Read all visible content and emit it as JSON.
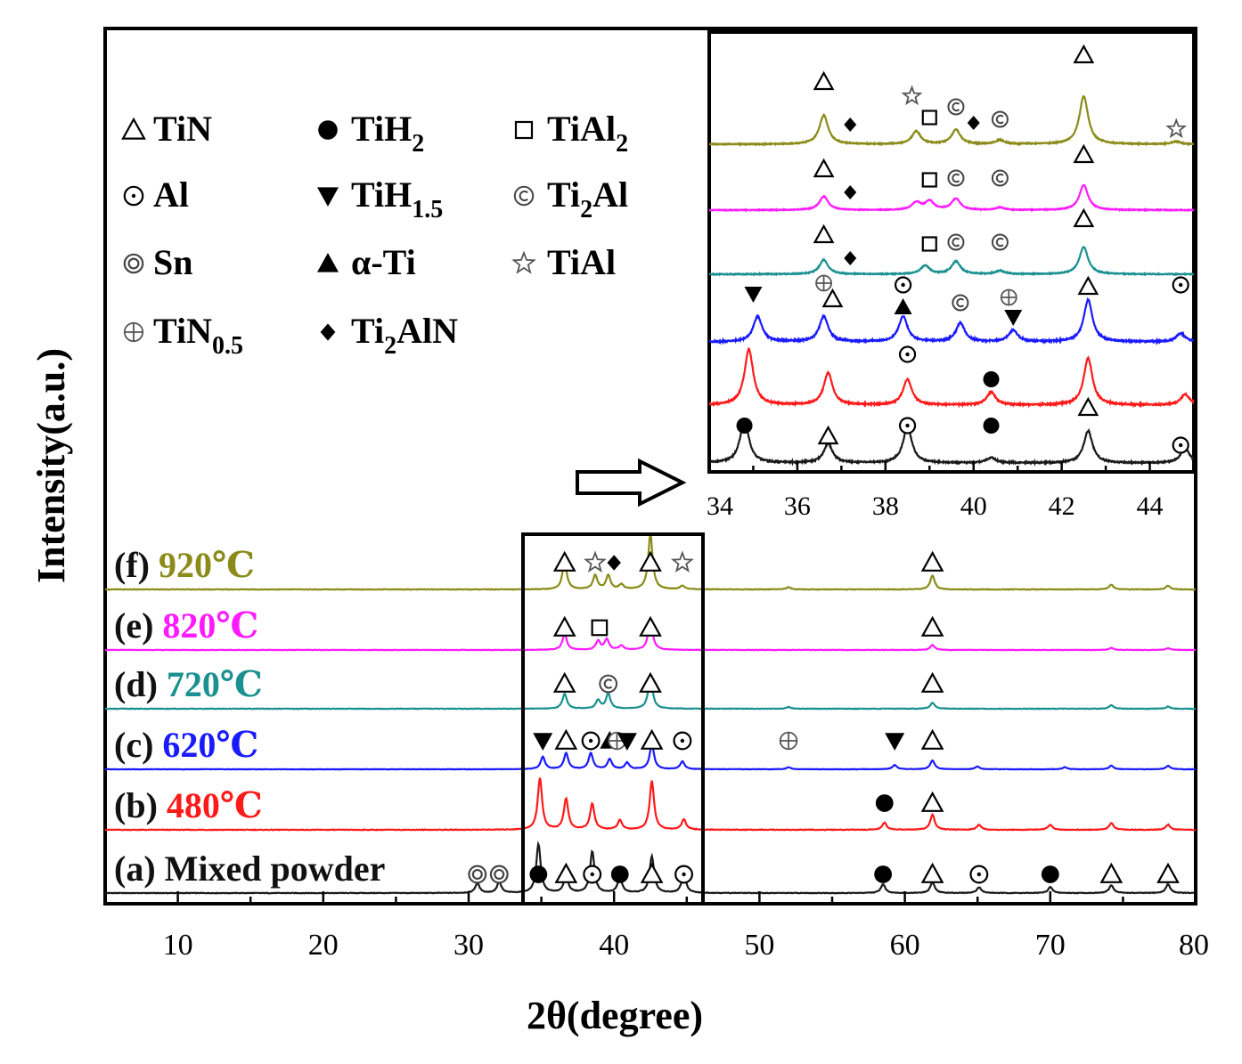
{
  "chart_data": {
    "type": "line",
    "xlabel": "2θ(degree)",
    "ylabel": "Intensity(a.u.)",
    "xlim": [
      5,
      80
    ],
    "xticks": [
      10,
      20,
      30,
      40,
      50,
      60,
      70,
      80
    ],
    "grid": false,
    "legend_position": "top-left",
    "legend": [
      {
        "symbol": "triangle-open",
        "label": "TiN"
      },
      {
        "symbol": "circle-filled",
        "label": "TiH",
        "sub": "2"
      },
      {
        "symbol": "square-open",
        "label": "TiAl",
        "sub": "2"
      },
      {
        "symbol": "circle-dot",
        "label": "Al"
      },
      {
        "symbol": "triangle-down-filled",
        "label": "TiH",
        "sub": "1.5"
      },
      {
        "symbol": "circle-c",
        "label": "Ti",
        "sub": "2",
        "after": "Al"
      },
      {
        "symbol": "circle-double",
        "label": "Sn"
      },
      {
        "symbol": "triangle-up-filled",
        "label": "α-Ti"
      },
      {
        "symbol": "star-open",
        "label": "TiAl"
      },
      {
        "symbol": "circle-plus",
        "label": "TiN",
        "sub": "0.5"
      },
      {
        "symbol": "diamond-filled",
        "label": "Ti",
        "sub": "2",
        "after": "AlN"
      }
    ],
    "series": [
      {
        "id": "a",
        "tag": "(a)",
        "name": "Mixed powder",
        "color": "#1a1a1a",
        "peaks": [
          [
            30.6,
            0.2
          ],
          [
            32.1,
            0.22
          ],
          [
            34.8,
            1.0
          ],
          [
            36.7,
            0.35
          ],
          [
            38.5,
            0.85
          ],
          [
            40.4,
            0.32
          ],
          [
            42.6,
            0.75
          ],
          [
            44.8,
            0.4
          ],
          [
            58.5,
            0.18
          ],
          [
            61.9,
            0.22
          ],
          [
            65.1,
            0.12
          ],
          [
            70.0,
            0.12
          ],
          [
            74.2,
            0.16
          ],
          [
            78.1,
            0.18
          ]
        ],
        "markers": [
          [
            30.6,
            "circle-double"
          ],
          [
            32.1,
            "circle-double"
          ],
          [
            34.8,
            "circle-filled"
          ],
          [
            36.7,
            "triangle-open"
          ],
          [
            38.5,
            "circle-dot"
          ],
          [
            40.4,
            "circle-filled"
          ],
          [
            42.6,
            "triangle-open"
          ],
          [
            44.8,
            "circle-dot"
          ],
          [
            58.5,
            "circle-filled"
          ],
          [
            61.9,
            "triangle-open"
          ],
          [
            65.1,
            "circle-dot"
          ],
          [
            70.0,
            "circle-filled"
          ],
          [
            74.2,
            "triangle-open"
          ],
          [
            78.1,
            "triangle-open"
          ]
        ]
      },
      {
        "id": "b",
        "tag": "(b)",
        "name": "480℃",
        "color": "#ff1a1a",
        "peaks": [
          [
            34.9,
            1.0
          ],
          [
            36.7,
            0.6
          ],
          [
            38.5,
            0.5
          ],
          [
            40.4,
            0.18
          ],
          [
            42.6,
            0.95
          ],
          [
            44.8,
            0.2
          ],
          [
            58.6,
            0.14
          ],
          [
            61.9,
            0.3
          ],
          [
            65.1,
            0.1
          ],
          [
            70.0,
            0.1
          ],
          [
            74.2,
            0.13
          ],
          [
            78.1,
            0.1
          ]
        ],
        "markers": [
          [
            58.6,
            "circle-filled"
          ],
          [
            61.9,
            "triangle-open"
          ]
        ]
      },
      {
        "id": "c",
        "tag": "(c)",
        "name": "620℃",
        "color": "#1a1aff",
        "peaks": [
          [
            35.1,
            0.35
          ],
          [
            36.7,
            0.45
          ],
          [
            38.4,
            0.45
          ],
          [
            39.7,
            0.28
          ],
          [
            40.9,
            0.18
          ],
          [
            42.6,
            0.7
          ],
          [
            44.7,
            0.22
          ],
          [
            52.0,
            0.06
          ],
          [
            59.3,
            0.12
          ],
          [
            61.9,
            0.25
          ],
          [
            65.0,
            0.08
          ],
          [
            71.0,
            0.06
          ],
          [
            74.2,
            0.1
          ],
          [
            78.1,
            0.1
          ]
        ],
        "markers": [
          [
            35.1,
            "triangle-down-filled"
          ],
          [
            36.7,
            "triangle-open"
          ],
          [
            38.4,
            "circle-dot"
          ],
          [
            39.7,
            "triangle-up-filled"
          ],
          [
            40.2,
            "circle-plus"
          ],
          [
            40.9,
            "triangle-down-filled"
          ],
          [
            42.6,
            "triangle-open"
          ],
          [
            44.7,
            "circle-dot"
          ],
          [
            52.0,
            "circle-plus"
          ],
          [
            59.3,
            "triangle-down-filled"
          ],
          [
            61.9,
            "triangle-open"
          ]
        ]
      },
      {
        "id": "d",
        "tag": "(d)",
        "name": "720℃",
        "color": "#1a9090",
        "peaks": [
          [
            36.6,
            0.35
          ],
          [
            38.9,
            0.2
          ],
          [
            39.6,
            0.35
          ],
          [
            42.5,
            0.75
          ],
          [
            52.0,
            0.04
          ],
          [
            61.9,
            0.14
          ],
          [
            74.2,
            0.08
          ],
          [
            78.1,
            0.05
          ]
        ],
        "markers": [
          [
            36.6,
            "triangle-open"
          ],
          [
            39.6,
            "circle-c"
          ],
          [
            42.5,
            "triangle-open"
          ],
          [
            61.9,
            "triangle-open"
          ]
        ]
      },
      {
        "id": "e",
        "tag": "(e)",
        "name": "820℃",
        "color": "#ff1aff",
        "peaks": [
          [
            36.6,
            0.45
          ],
          [
            38.9,
            0.25
          ],
          [
            39.5,
            0.3
          ],
          [
            40.5,
            0.12
          ],
          [
            42.5,
            0.85
          ],
          [
            61.9,
            0.14
          ],
          [
            74.2,
            0.06
          ],
          [
            78.1,
            0.05
          ]
        ],
        "markers": [
          [
            36.6,
            "triangle-open"
          ],
          [
            39.0,
            "square-open"
          ],
          [
            42.5,
            "triangle-open"
          ],
          [
            61.9,
            "triangle-open"
          ]
        ]
      },
      {
        "id": "f",
        "tag": "(f)",
        "name": "920℃",
        "color": "#8b8b1a",
        "peaks": [
          [
            36.6,
            0.6
          ],
          [
            38.7,
            0.3
          ],
          [
            39.6,
            0.3
          ],
          [
            40.5,
            0.1
          ],
          [
            42.5,
            1.2
          ],
          [
            44.7,
            0.08
          ],
          [
            52.0,
            0.05
          ],
          [
            61.9,
            0.3
          ],
          [
            74.2,
            0.1
          ],
          [
            78.1,
            0.08
          ]
        ],
        "markers": [
          [
            36.6,
            "triangle-open"
          ],
          [
            38.7,
            "star-open"
          ],
          [
            40.0,
            "diamond-filled"
          ],
          [
            42.5,
            "triangle-open"
          ],
          [
            44.7,
            "star-open"
          ],
          [
            61.9,
            "triangle-open"
          ]
        ]
      }
    ],
    "inset": {
      "xlim": [
        34,
        45
      ],
      "xticks": [
        34,
        36,
        38,
        40,
        42,
        44
      ],
      "series": [
        {
          "ref": "a",
          "peaks": [
            [
              34.8,
              1.0
            ],
            [
              36.7,
              0.45
            ],
            [
              38.5,
              0.85
            ],
            [
              40.4,
              0.12
            ],
            [
              42.6,
              0.75
            ],
            [
              44.8,
              0.35
            ]
          ],
          "markers": [
            [
              34.8,
              "circle-filled"
            ],
            [
              36.7,
              "triangle-open"
            ],
            [
              38.5,
              "circle-dot"
            ],
            [
              40.4,
              "circle-filled"
            ],
            [
              42.6,
              "triangle-open"
            ],
            [
              44.7,
              "circle-dot"
            ]
          ]
        },
        {
          "ref": "b",
          "peaks": [
            [
              34.9,
              1.3
            ],
            [
              36.7,
              0.75
            ],
            [
              38.5,
              0.6
            ],
            [
              40.4,
              0.3
            ],
            [
              42.6,
              1.1
            ],
            [
              44.8,
              0.25
            ]
          ],
          "markers": [
            [
              38.5,
              "circle-dot"
            ],
            [
              40.4,
              "circle-filled"
            ]
          ]
        },
        {
          "ref": "c",
          "peaks": [
            [
              35.1,
              0.55
            ],
            [
              36.6,
              0.55
            ],
            [
              38.4,
              0.55
            ],
            [
              39.7,
              0.4
            ],
            [
              40.9,
              0.25
            ],
            [
              42.6,
              0.9
            ],
            [
              44.7,
              0.18
            ]
          ],
          "markers": [
            [
              35.0,
              "triangle-down-filled"
            ],
            [
              36.6,
              "circle-plus"
            ],
            [
              36.8,
              "triangle-open"
            ],
            [
              38.4,
              "circle-dot"
            ],
            [
              38.4,
              "triangle-up-filled"
            ],
            [
              39.7,
              "circle-c"
            ],
            [
              40.8,
              "circle-plus"
            ],
            [
              40.9,
              "triangle-down-filled"
            ],
            [
              42.6,
              "triangle-open"
            ],
            [
              44.7,
              "circle-dot"
            ]
          ]
        },
        {
          "ref": "d",
          "peaks": [
            [
              36.6,
              0.5
            ],
            [
              38.9,
              0.3
            ],
            [
              39.6,
              0.45
            ],
            [
              40.6,
              0.12
            ],
            [
              42.5,
              0.95
            ]
          ],
          "markers": [
            [
              36.6,
              "triangle-open"
            ],
            [
              37.2,
              "diamond-filled"
            ],
            [
              39.0,
              "square-open"
            ],
            [
              39.6,
              "circle-c"
            ],
            [
              40.6,
              "circle-c"
            ],
            [
              42.5,
              "triangle-open"
            ]
          ]
        },
        {
          "ref": "e",
          "peaks": [
            [
              36.6,
              0.55
            ],
            [
              38.7,
              0.3
            ],
            [
              39.0,
              0.35
            ],
            [
              39.6,
              0.45
            ],
            [
              40.6,
              0.1
            ],
            [
              42.5,
              1.0
            ]
          ],
          "markers": [
            [
              36.6,
              "triangle-open"
            ],
            [
              37.2,
              "diamond-filled"
            ],
            [
              39.0,
              "square-open"
            ],
            [
              39.6,
              "circle-c"
            ],
            [
              40.6,
              "circle-c"
            ],
            [
              42.5,
              "triangle-open"
            ]
          ]
        },
        {
          "ref": "f",
          "peaks": [
            [
              36.6,
              0.9
            ],
            [
              38.7,
              0.4
            ],
            [
              39.6,
              0.45
            ],
            [
              40.6,
              0.12
            ],
            [
              42.5,
              1.5
            ],
            [
              44.6,
              0.08
            ]
          ],
          "markers": [
            [
              36.6,
              "triangle-open"
            ],
            [
              37.2,
              "diamond-filled"
            ],
            [
              38.6,
              "star-open"
            ],
            [
              39.0,
              "square-open"
            ],
            [
              39.6,
              "circle-c"
            ],
            [
              40.0,
              "diamond-filled"
            ],
            [
              40.6,
              "circle-c"
            ],
            [
              42.5,
              "triangle-open"
            ],
            [
              44.6,
              "star-open"
            ]
          ]
        }
      ]
    }
  }
}
